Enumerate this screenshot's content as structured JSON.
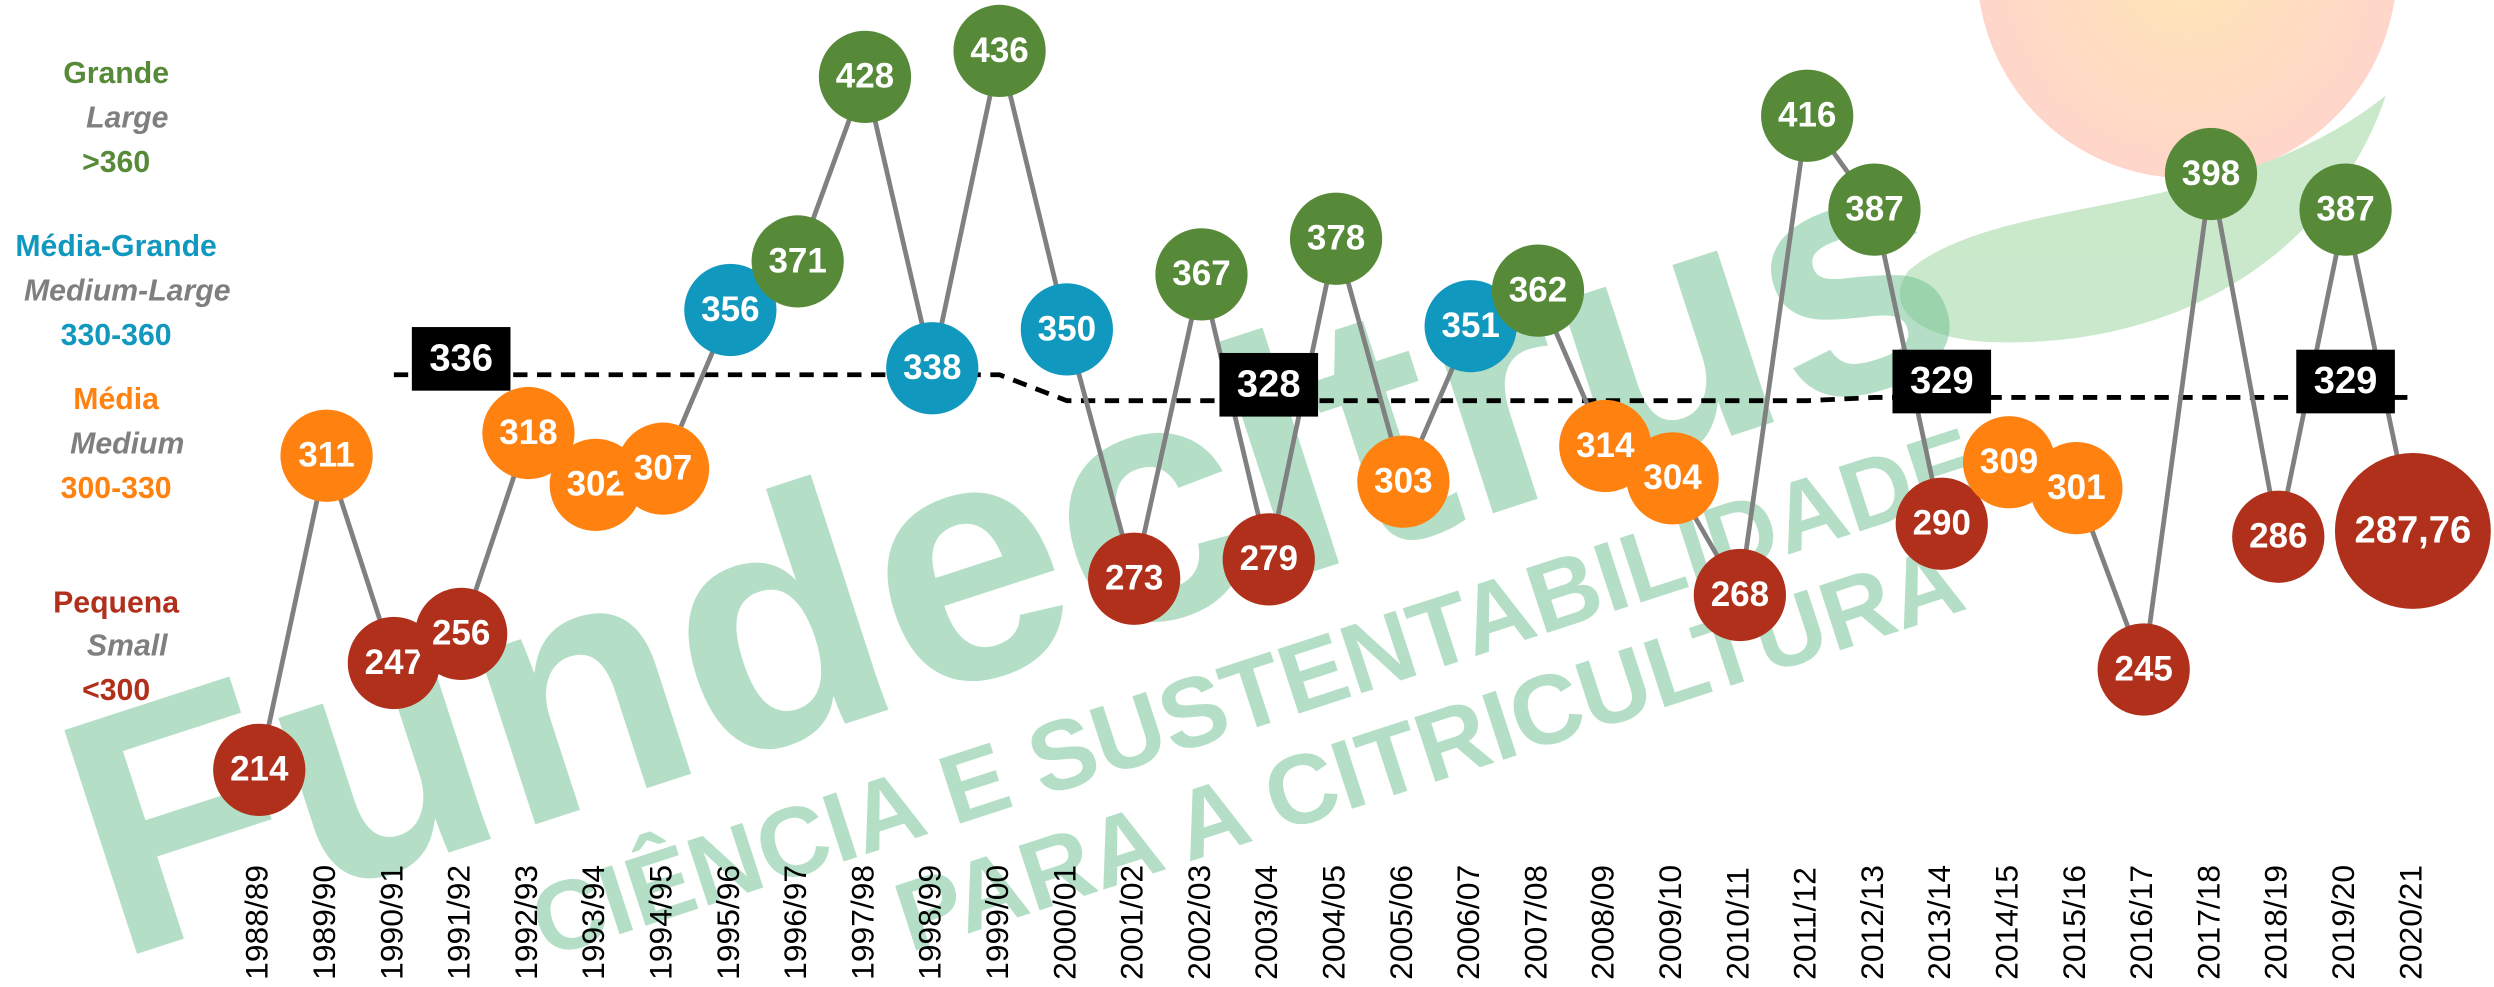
{
  "chart_data": {
    "type": "line",
    "categories": [
      "1988/89",
      "1989/90",
      "1990/91",
      "1991/92",
      "1992/93",
      "1993/94",
      "1994/95",
      "1995/96",
      "1996/97",
      "1997/98",
      "1998/99",
      "1999/00",
      "2000/01",
      "2001/02",
      "2002/03",
      "2003/04",
      "2004/05",
      "2005/06",
      "2006/07",
      "2007/08",
      "2008/09",
      "2009/10",
      "2010/11",
      "2011/12",
      "2012/13",
      "2013/14",
      "2014/15",
      "2015/16",
      "2016/17",
      "2017/18",
      "2018/19",
      "2019/20",
      "2020/21"
    ],
    "series": [
      {
        "color": "#808080",
        "values": [
          214,
          311,
          247,
          256,
          318,
          302,
          307,
          356,
          371,
          428,
          338,
          436,
          350,
          273,
          367,
          279,
          378,
          303,
          351,
          362,
          314,
          304,
          268,
          416,
          387,
          290,
          309,
          301,
          245,
          398,
          286,
          387,
          287.76
        ],
        "value_labels": [
          "214",
          "311",
          "247",
          "256",
          "318",
          "302",
          "307",
          "356",
          "371",
          "428",
          "338",
          "436",
          "350",
          "273",
          "367",
          "279",
          "378",
          "303",
          "351",
          "362",
          "314",
          "304",
          "268",
          "416",
          "387",
          "290",
          "309",
          "301",
          "245",
          "398",
          "286",
          "387",
          "287,76"
        ],
        "point_colors": [
          "#b0301b",
          "#ff8211",
          "#b0301b",
          "#b0301b",
          "#ff8211",
          "#ff8211",
          "#ff8211",
          "#1198be",
          "#568a38",
          "#568a38",
          "#1198be",
          "#568a38",
          "#1198be",
          "#b0301b",
          "#568a38",
          "#b0301b",
          "#568a38",
          "#ff8211",
          "#1198be",
          "#568a38",
          "#ff8211",
          "#ff8211",
          "#b0301b",
          "#568a38",
          "#568a38",
          "#b0301b",
          "#ff8211",
          "#ff8211",
          "#b0301b",
          "#568a38",
          "#b0301b",
          "#568a38",
          "#b0301b"
        ]
      }
    ],
    "average_line": [
      null,
      null,
      336,
      336,
      336,
      336,
      336,
      336,
      336,
      336,
      336,
      336,
      328,
      328,
      328,
      328,
      328,
      328,
      328,
      328,
      328,
      328,
      328,
      328,
      329,
      329,
      329,
      329,
      329,
      329,
      329,
      329,
      329
    ],
    "average_boxes": [
      null,
      null,
      null,
      336,
      null,
      null,
      null,
      null,
      null,
      null,
      null,
      null,
      null,
      null,
      null,
      328,
      null,
      null,
      null,
      null,
      null,
      null,
      null,
      null,
      null,
      329,
      null,
      null,
      null,
      null,
      null,
      329,
      null
    ],
    "classes": [
      {
        "name": "Grande",
        "name_en": "Large",
        "range": ">360",
        "color": "#568a38"
      },
      {
        "name": "Média-Grande",
        "name_en": "Medium-Large",
        "range": "330-360",
        "color": "#1198be"
      },
      {
        "name": "Média",
        "name_en": "Medium",
        "range": "300-330",
        "color": "#ff8211"
      },
      {
        "name": "Pequena",
        "name_en": "Small",
        "range": "<300",
        "color": "#b0301b"
      }
    ]
  },
  "watermark": {
    "brand": "Fundecitrus",
    "line1": "CIÊNCIA E SUSTENTABILIDADE",
    "line2": "PARA A CITRICULTURA"
  }
}
